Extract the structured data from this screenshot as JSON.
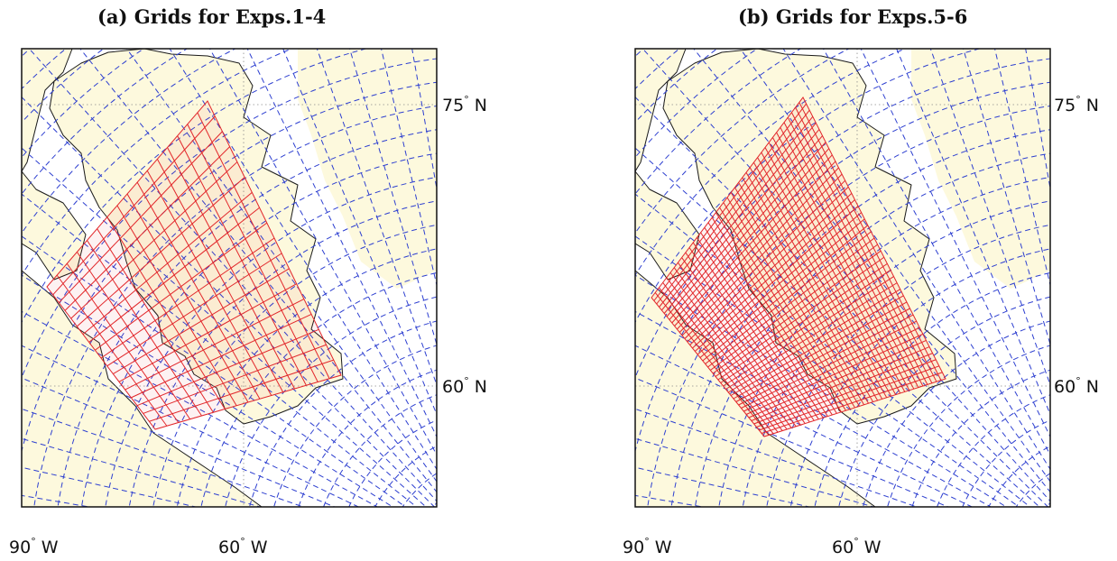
{
  "panels": [
    {
      "title": "(a) Grids for Exps.1-4",
      "lat_labels": [
        {
          "deg": "75",
          "sup": "°",
          "hemi": "N"
        },
        {
          "deg": "60",
          "sup": "°",
          "hemi": "N"
        }
      ],
      "lon_labels": [
        {
          "deg": "90",
          "sup": "°",
          "hemi": "W"
        },
        {
          "deg": "60",
          "sup": "°",
          "hemi": "W"
        }
      ],
      "outer_grid": "dashed-blue",
      "nested_grid": "solid-red-coarse"
    },
    {
      "title": "(b) Grids for Exps.5-6",
      "lat_labels": [
        {
          "deg": "75",
          "sup": "°",
          "hemi": "N"
        },
        {
          "deg": "60",
          "sup": "°",
          "hemi": "N"
        }
      ],
      "lon_labels": [
        {
          "deg": "90",
          "sup": "°",
          "hemi": "W"
        },
        {
          "deg": "60",
          "sup": "°",
          "hemi": "W"
        }
      ],
      "outer_grid": "dashed-blue",
      "nested_grid": "solid-red-fine"
    }
  ],
  "colors": {
    "land": "#fdf9dd",
    "outer_grid": "#2d3fd0",
    "nested_grid": "#e2262a",
    "coast": "#1a1a1a",
    "graticule": "#8a8a8a"
  }
}
